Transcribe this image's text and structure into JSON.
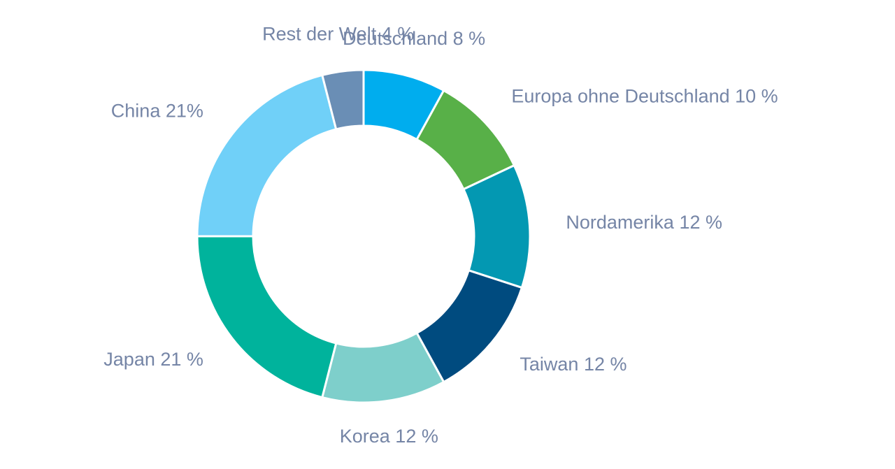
{
  "chart_data": {
    "type": "pie",
    "variant": "donut",
    "start": "12 o'clock",
    "direction": "clockwise",
    "label_color": "#7585a6",
    "slices": [
      {
        "label": "Deutschland 8 %",
        "value": 8,
        "color": "#00adee"
      },
      {
        "label": "Europa ohne Deutschland 10 %",
        "value": 10,
        "color": "#58b048"
      },
      {
        "label": "Nordamerika 12 %",
        "value": 12,
        "color": "#0398b2"
      },
      {
        "label": "Taiwan 12 %",
        "value": 12,
        "color": "#004b7f"
      },
      {
        "label": "Korea 12 %",
        "value": 12,
        "color": "#7ecfcb"
      },
      {
        "label": "Japan 21 %",
        "value": 21,
        "color": "#00b39c"
      },
      {
        "label": "China 21%",
        "value": 21,
        "color": "#70d0f8"
      },
      {
        "label": "Rest der Welt 4 %",
        "value": 4,
        "color": "#6a8eb5"
      }
    ]
  }
}
